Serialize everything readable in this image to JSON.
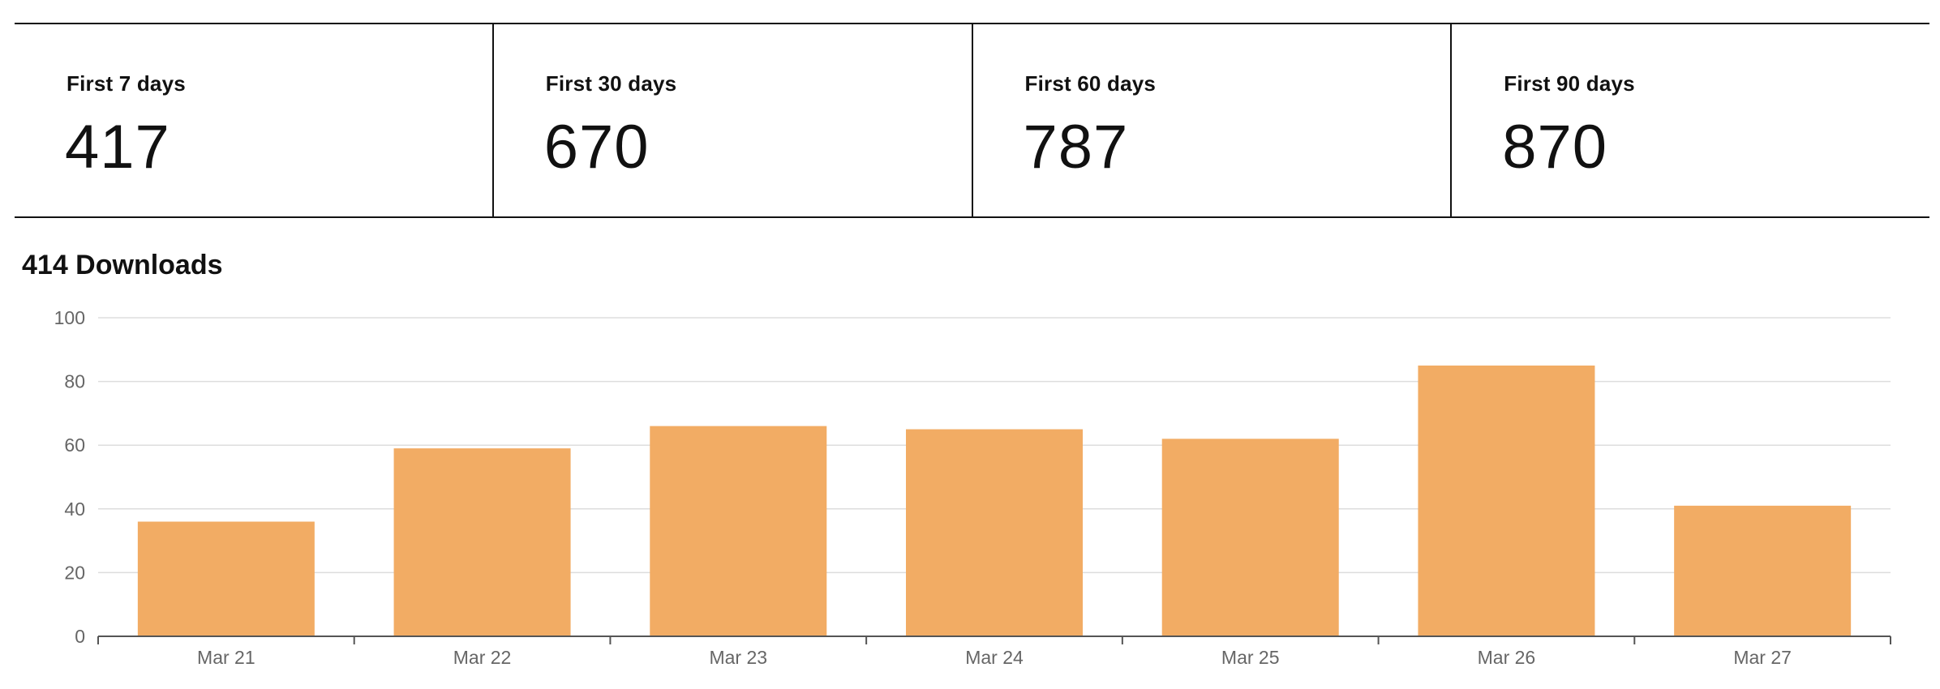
{
  "stats": [
    {
      "label": "First 7 days",
      "value": "417"
    },
    {
      "label": "First 30 days",
      "value": "670"
    },
    {
      "label": "First 60 days",
      "value": "787"
    },
    {
      "label": "First 90 days",
      "value": "870"
    }
  ],
  "chart_title": "414 Downloads",
  "colors": {
    "bar": "#F2AC64",
    "grid": "#dddddd",
    "axis": "#555555",
    "tick_text": "#666666"
  },
  "chart_data": {
    "type": "bar",
    "title": "414 Downloads",
    "xlabel": "",
    "ylabel": "",
    "categories": [
      "Mar 21",
      "Mar 22",
      "Mar 23",
      "Mar 24",
      "Mar 25",
      "Mar 26",
      "Mar 27"
    ],
    "values": [
      36,
      59,
      66,
      65,
      62,
      85,
      41
    ],
    "ylim": [
      0,
      100
    ],
    "yticks": [
      0,
      20,
      40,
      60,
      80,
      100
    ],
    "grid": true
  }
}
